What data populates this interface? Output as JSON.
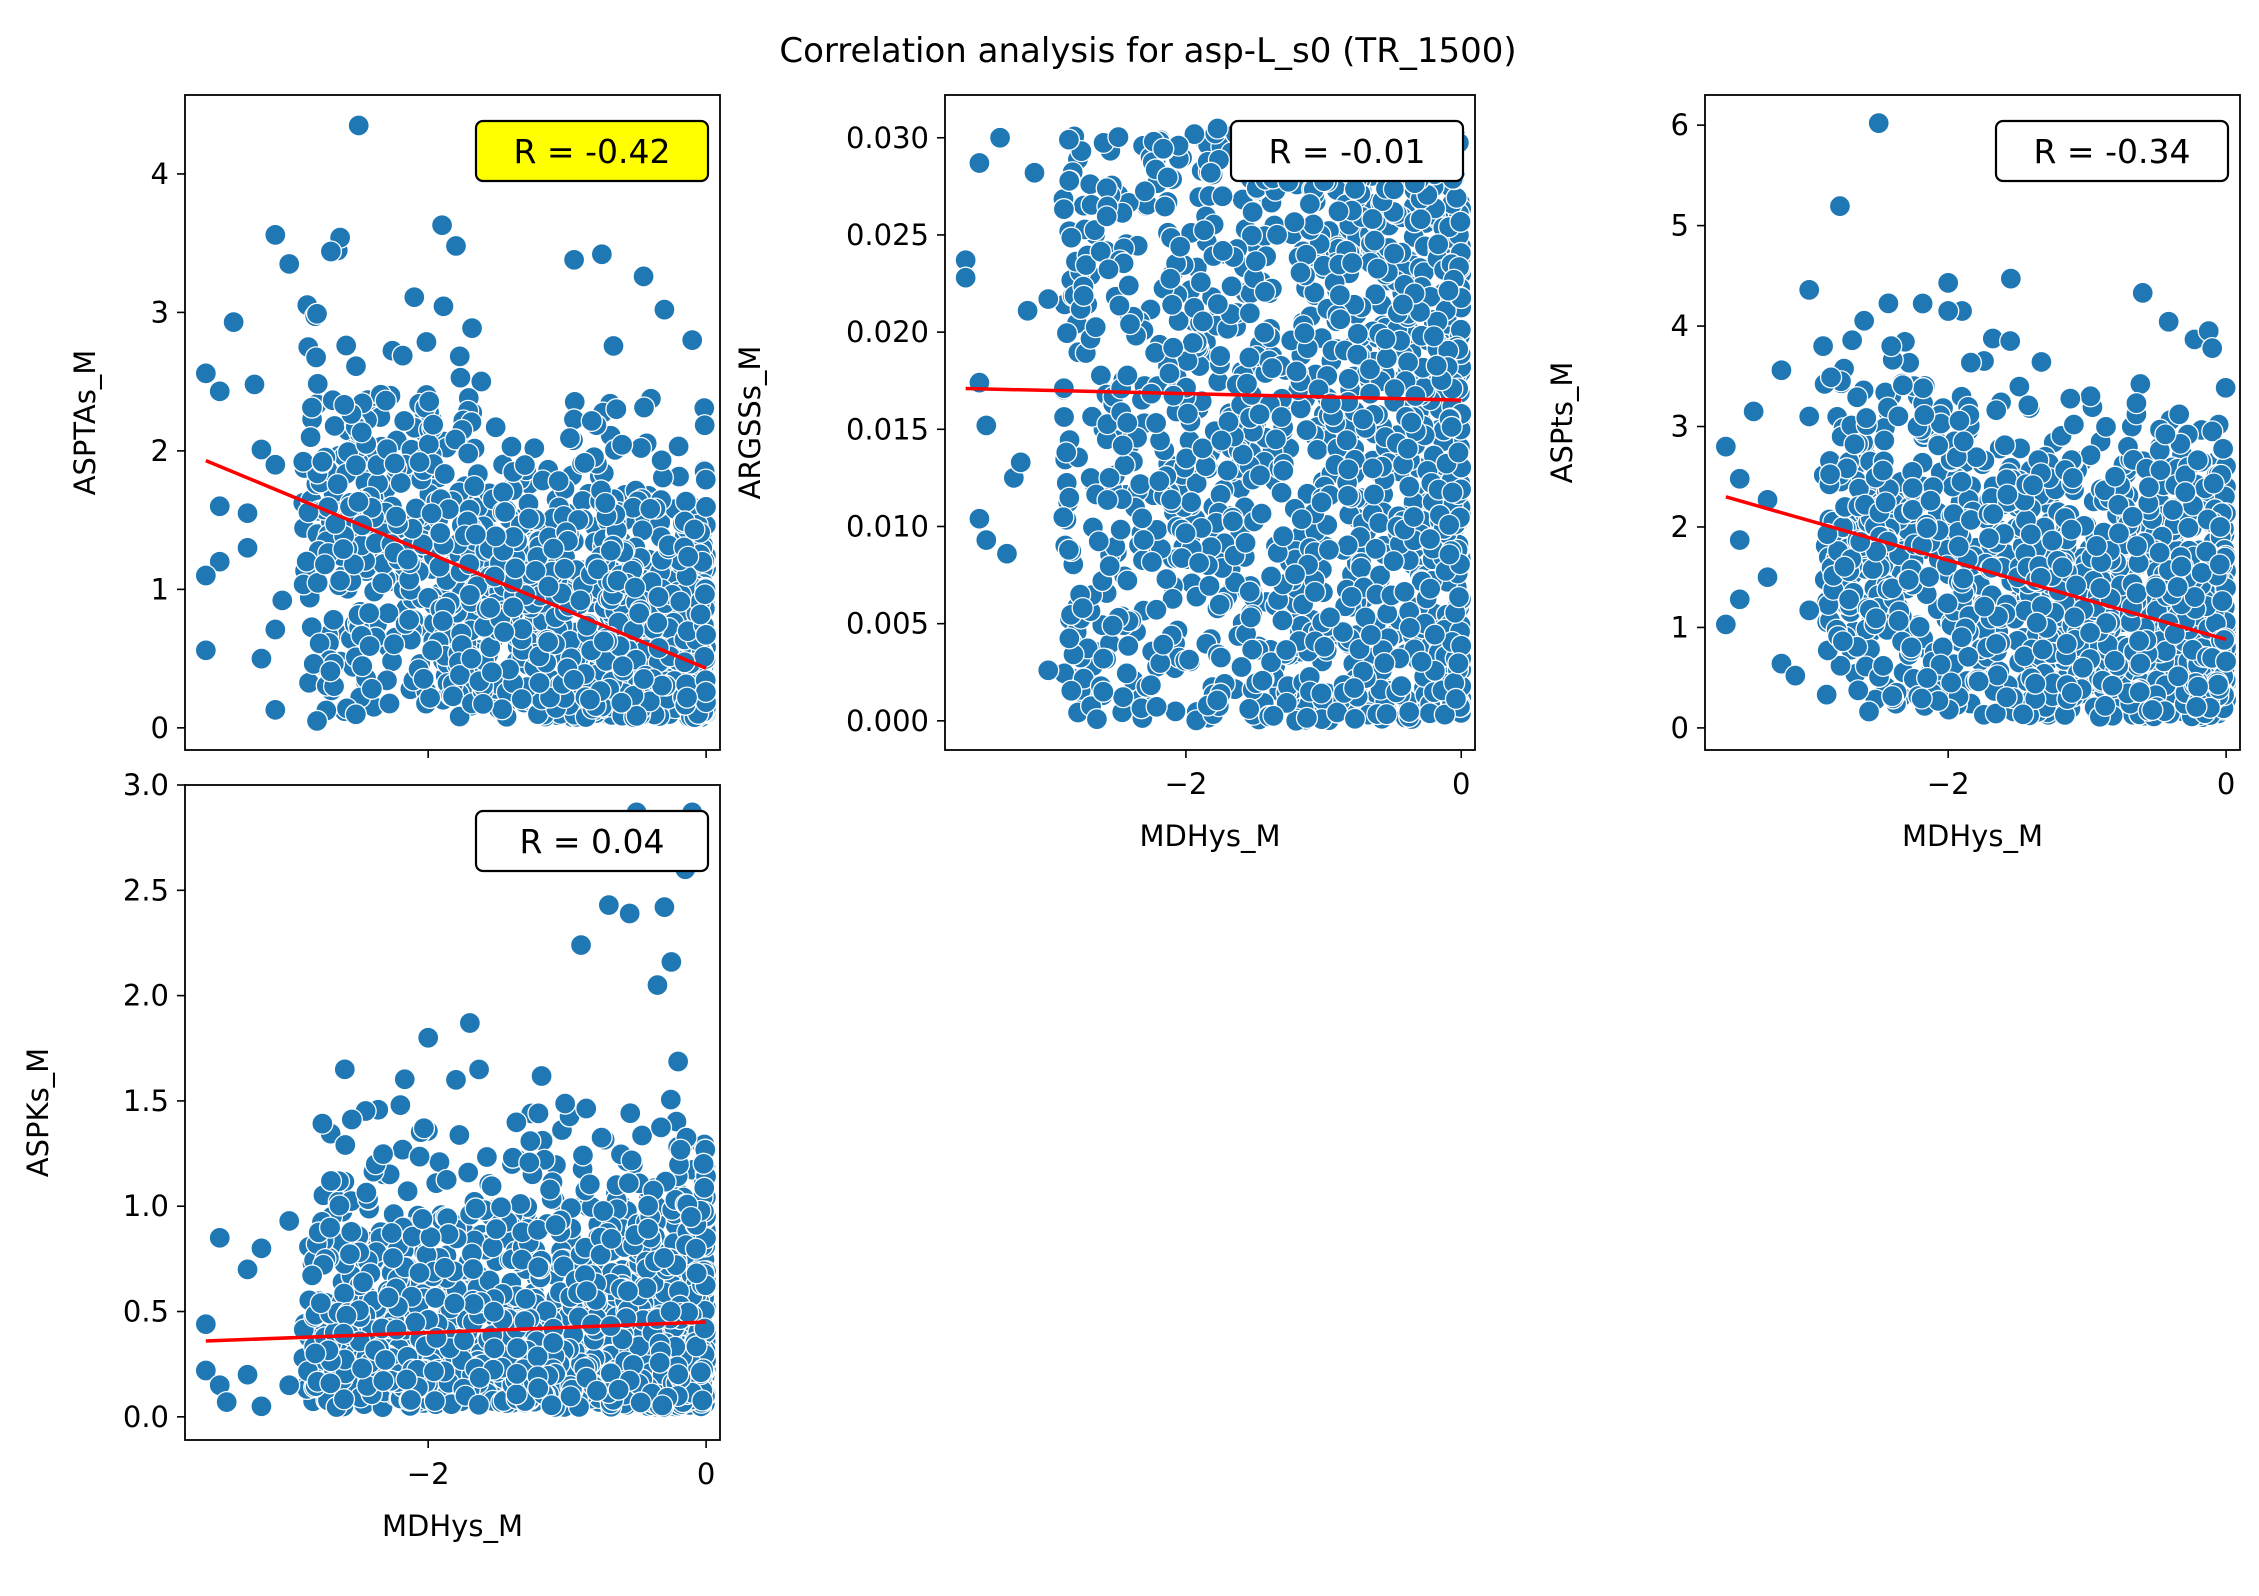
{
  "title": "Correlation analysis for asp-L_s0 (TR_1500)",
  "colors": {
    "points": "#1f77b4",
    "fit_line": "#ff0000",
    "highlight": "#ffff00",
    "box": "#ffffff"
  },
  "chart_data": [
    {
      "type": "scatter",
      "xlabel": "",
      "ylabel": "ASPTAs_M",
      "xlim": [
        -3.75,
        0.1
      ],
      "ylim": [
        -0.16,
        4.57
      ],
      "xticks": [
        -2,
        0
      ],
      "xtick_labels": [
        "",
        ""
      ],
      "yticks": [
        0,
        1,
        2,
        3,
        4
      ],
      "ytick_labels": [
        "0",
        "1",
        "2",
        "3",
        "4"
      ],
      "r_label": "R = -0.42",
      "highlight": true,
      "fit_line": {
        "x": [
          -3.6,
          0
        ],
        "y": [
          1.93,
          0.43
        ]
      },
      "points_sample": [
        {
          "x": -2.5,
          "y": 4.35
        },
        {
          "x": -1.9,
          "y": 3.63
        },
        {
          "x": -3.1,
          "y": 3.56
        },
        {
          "x": -1.8,
          "y": 3.48
        },
        {
          "x": -2.7,
          "y": 3.44
        },
        {
          "x": -0.75,
          "y": 3.42
        },
        {
          "x": -3.0,
          "y": 3.35
        },
        {
          "x": -0.95,
          "y": 3.38
        },
        {
          "x": -0.45,
          "y": 3.26
        },
        {
          "x": -2.1,
          "y": 3.11
        },
        {
          "x": -2.8,
          "y": 2.99
        },
        {
          "x": -0.3,
          "y": 3.02
        },
        {
          "x": -3.4,
          "y": 2.93
        },
        {
          "x": -0.1,
          "y": 2.8
        },
        {
          "x": -3.6,
          "y": 2.56
        },
        {
          "x": -3.5,
          "y": 2.43
        },
        {
          "x": -3.25,
          "y": 2.48
        },
        {
          "x": -3.2,
          "y": 2.01
        },
        {
          "x": -3.1,
          "y": 1.9
        },
        {
          "x": -3.5,
          "y": 1.6
        },
        {
          "x": -3.3,
          "y": 1.55
        },
        {
          "x": -3.5,
          "y": 1.2
        },
        {
          "x": -3.6,
          "y": 1.1
        },
        {
          "x": -3.3,
          "y": 1.3
        },
        {
          "x": -3.05,
          "y": 0.92
        },
        {
          "x": -3.1,
          "y": 0.71
        },
        {
          "x": -3.6,
          "y": 0.56
        },
        {
          "x": -3.2,
          "y": 0.5
        },
        {
          "x": -3.1,
          "y": 0.13
        },
        {
          "x": -2.8,
          "y": 0.05
        }
      ]
    },
    {
      "type": "scatter",
      "xlabel": "MDHys_M",
      "ylabel": "ARGSSs_M",
      "xlim": [
        -3.75,
        0.1
      ],
      "ylim": [
        -0.0015,
        0.0322
      ],
      "xticks": [
        -2,
        0
      ],
      "xtick_labels": [
        "−2",
        "0"
      ],
      "yticks": [
        0,
        0.005,
        0.01,
        0.015,
        0.02,
        0.025,
        0.03
      ],
      "ytick_labels": [
        "0.000",
        "0.005",
        "0.010",
        "0.015",
        "0.020",
        "0.025",
        "0.030"
      ],
      "r_label": "R = -0.01",
      "highlight": false,
      "fit_line": {
        "x": [
          -3.6,
          0
        ],
        "y": [
          0.0171,
          0.0165
        ]
      },
      "points_sample": [
        {
          "x": -3.6,
          "y": 0.0237
        },
        {
          "x": -3.6,
          "y": 0.0228
        },
        {
          "x": -3.5,
          "y": 0.0287
        },
        {
          "x": -3.35,
          "y": 0.03
        },
        {
          "x": -3.1,
          "y": 0.0282
        },
        {
          "x": -2.85,
          "y": 0.0299
        },
        {
          "x": -3.5,
          "y": 0.0174
        },
        {
          "x": -3.45,
          "y": 0.0152
        },
        {
          "x": -3.5,
          "y": 0.0104
        },
        {
          "x": -3.45,
          "y": 0.0093
        },
        {
          "x": -3.3,
          "y": 0.0086
        },
        {
          "x": -3.25,
          "y": 0.0125
        },
        {
          "x": -3.2,
          "y": 0.0133
        },
        {
          "x": -3.15,
          "y": 0.0211
        },
        {
          "x": -3.0,
          "y": 0.0026
        },
        {
          "x": -2.6,
          "y": 0.0015
        },
        {
          "x": -2.6,
          "y": 0.0032
        },
        {
          "x": -2.85,
          "y": 0.0088
        },
        {
          "x": -2.75,
          "y": 0.0058
        },
        {
          "x": -3.0,
          "y": 0.0217
        }
      ]
    },
    {
      "type": "scatter",
      "xlabel": "MDHys_M",
      "ylabel": "ASPts_M",
      "xlim": [
        -3.75,
        0.1
      ],
      "ylim": [
        -0.22,
        6.3
      ],
      "xticks": [
        -2,
        0
      ],
      "xtick_labels": [
        "−2",
        "0"
      ],
      "yticks": [
        0,
        1,
        2,
        3,
        4,
        5,
        6
      ],
      "ytick_labels": [
        "0",
        "1",
        "2",
        "3",
        "4",
        "5",
        "6"
      ],
      "r_label": "R = -0.34",
      "highlight": false,
      "fit_line": {
        "x": [
          -3.6,
          0
        ],
        "y": [
          2.3,
          0.88
        ]
      },
      "points_sample": [
        {
          "x": -2.5,
          "y": 6.02
        },
        {
          "x": -2.0,
          "y": 4.43
        },
        {
          "x": -1.9,
          "y": 4.15
        },
        {
          "x": -2.0,
          "y": 4.15
        },
        {
          "x": -3.0,
          "y": 4.36
        },
        {
          "x": -0.6,
          "y": 4.33
        },
        {
          "x": -2.9,
          "y": 3.8
        },
        {
          "x": -3.2,
          "y": 3.56
        },
        {
          "x": -3.4,
          "y": 3.15
        },
        {
          "x": -3.0,
          "y": 3.1
        },
        {
          "x": -3.6,
          "y": 2.8
        },
        {
          "x": -3.5,
          "y": 2.48
        },
        {
          "x": -3.3,
          "y": 2.27
        },
        {
          "x": -3.5,
          "y": 1.87
        },
        {
          "x": -3.3,
          "y": 1.5
        },
        {
          "x": -3.6,
          "y": 1.03
        },
        {
          "x": -3.5,
          "y": 1.28
        },
        {
          "x": -3.0,
          "y": 1.17
        },
        {
          "x": -3.2,
          "y": 0.64
        },
        {
          "x": -3.1,
          "y": 0.52
        },
        {
          "x": -0.1,
          "y": 3.78
        }
      ]
    },
    {
      "type": "scatter",
      "xlabel": "MDHys_M",
      "ylabel": "ASPKs_M",
      "xlim": [
        -3.75,
        0.1
      ],
      "ylim": [
        -0.11,
        3.0
      ],
      "xticks": [
        -2,
        0
      ],
      "xtick_labels": [
        "−2",
        "0"
      ],
      "yticks": [
        0,
        0.5,
        1,
        1.5,
        2,
        2.5,
        3
      ],
      "ytick_labels": [
        "0.0",
        "0.5",
        "1.0",
        "1.5",
        "2.0",
        "2.5",
        "3.0"
      ],
      "r_label": "R = 0.04",
      "highlight": false,
      "fit_line": {
        "x": [
          -3.6,
          0
        ],
        "y": [
          0.36,
          0.45
        ]
      },
      "points_sample": [
        {
          "x": -0.1,
          "y": 2.87
        },
        {
          "x": -0.5,
          "y": 2.87
        },
        {
          "x": -0.15,
          "y": 2.6
        },
        {
          "x": -0.7,
          "y": 2.43
        },
        {
          "x": -0.55,
          "y": 2.39
        },
        {
          "x": -0.3,
          "y": 2.42
        },
        {
          "x": -0.9,
          "y": 2.24
        },
        {
          "x": -0.25,
          "y": 2.16
        },
        {
          "x": -0.35,
          "y": 2.05
        },
        {
          "x": -2.0,
          "y": 1.8
        },
        {
          "x": -1.7,
          "y": 1.87
        },
        {
          "x": -2.6,
          "y": 1.65
        },
        {
          "x": -1.8,
          "y": 1.6
        },
        {
          "x": -2.2,
          "y": 1.48
        },
        {
          "x": -2.7,
          "y": 1.12
        },
        {
          "x": -3.0,
          "y": 0.93
        },
        {
          "x": -3.2,
          "y": 0.8
        },
        {
          "x": -3.3,
          "y": 0.7
        },
        {
          "x": -3.5,
          "y": 0.85
        },
        {
          "x": -3.6,
          "y": 0.44
        },
        {
          "x": -3.6,
          "y": 0.22
        },
        {
          "x": -3.5,
          "y": 0.15
        },
        {
          "x": -3.45,
          "y": 0.07
        },
        {
          "x": -3.3,
          "y": 0.2
        },
        {
          "x": -3.2,
          "y": 0.05
        },
        {
          "x": -3.0,
          "y": 0.15
        }
      ]
    }
  ]
}
